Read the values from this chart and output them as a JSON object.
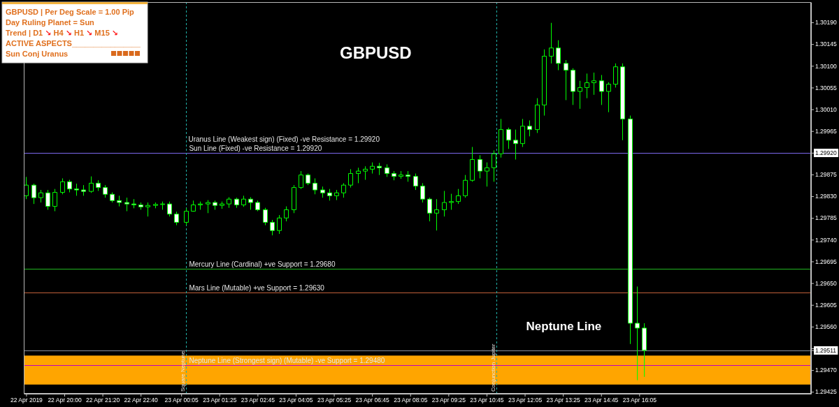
{
  "chart_data": {
    "type": "candlestick",
    "title": "GBPUSD",
    "color": "#00ff00",
    "x": [
      "2019-04-22T18:40",
      "2019-04-22T18:55",
      "2019-04-22T19:10",
      "2019-04-22T19:25",
      "2019-04-22T19:40",
      "2019-04-22T19:55",
      "2019-04-22T20:10",
      "2019-04-22T20:25",
      "2019-04-22T20:40",
      "2019-04-22T20:55",
      "2019-04-22T21:10",
      "2019-04-22T21:25",
      "2019-04-22T21:40",
      "2019-04-22T21:55",
      "2019-04-22T22:10",
      "2019-04-22T22:25",
      "2019-04-22T22:40",
      "2019-04-22T22:55",
      "2019-04-22T23:10",
      "2019-04-22T23:25",
      "2019-04-22T23:40",
      "2019-04-22T23:55",
      "2019-04-23T00:15",
      "2019-04-23T00:30",
      "2019-04-23T00:45",
      "2019-04-23T01:00",
      "2019-04-23T01:15",
      "2019-04-23T01:30",
      "2019-04-23T01:45",
      "2019-04-23T02:00",
      "2019-04-23T02:15",
      "2019-04-23T02:30",
      "2019-04-23T02:45",
      "2019-04-23T03:00",
      "2019-04-23T03:15",
      "2019-04-23T03:30",
      "2019-04-23T03:45",
      "2019-04-23T04:00",
      "2019-04-23T04:15",
      "2019-04-23T04:30",
      "2019-04-23T04:45",
      "2019-04-23T05:00",
      "2019-04-23T05:15",
      "2019-04-23T05:30",
      "2019-04-23T05:45",
      "2019-04-23T06:00",
      "2019-04-23T06:15",
      "2019-04-23T06:30",
      "2019-04-23T06:45",
      "2019-04-23T07:00",
      "2019-04-23T07:15",
      "2019-04-23T07:30",
      "2019-04-23T07:45",
      "2019-04-23T08:00",
      "2019-04-23T08:15",
      "2019-04-23T08:30",
      "2019-04-23T08:45",
      "2019-04-23T09:00",
      "2019-04-23T09:15",
      "2019-04-23T09:30",
      "2019-04-23T09:45",
      "2019-04-23T10:00",
      "2019-04-23T10:15",
      "2019-04-23T10:30",
      "2019-04-23T10:45",
      "2019-04-23T11:00",
      "2019-04-23T11:15",
      "2019-04-23T11:30",
      "2019-04-23T11:45",
      "2019-04-23T12:00",
      "2019-04-23T12:15",
      "2019-04-23T12:30",
      "2019-04-23T12:45",
      "2019-04-23T13:00",
      "2019-04-23T13:15",
      "2019-04-23T13:30",
      "2019-04-23T13:45",
      "2019-04-23T14:00",
      "2019-04-23T14:15",
      "2019-04-23T14:30",
      "2019-04-23T14:45",
      "2019-04-23T15:00",
      "2019-04-23T15:15",
      "2019-04-23T15:30",
      "2019-04-23T15:45",
      "2019-04-23T16:00",
      "2019-04-23T16:15"
    ],
    "ohlc": [
      [
        1.29831,
        1.2987,
        1.29824,
        1.29853
      ],
      [
        1.29853,
        1.29856,
        1.29814,
        1.29827
      ],
      [
        1.29827,
        1.29843,
        1.29817,
        1.29837
      ],
      [
        1.29837,
        1.29843,
        1.29802,
        1.29809
      ],
      [
        1.29809,
        1.29845,
        1.29799,
        1.29838
      ],
      [
        1.29838,
        1.29867,
        1.29834,
        1.2986
      ],
      [
        1.2986,
        1.29864,
        1.29838,
        1.29845
      ],
      [
        1.29845,
        1.29856,
        1.29831,
        1.29843
      ],
      [
        1.29843,
        1.29853,
        1.29831,
        1.2984
      ],
      [
        1.2984,
        1.29871,
        1.29837,
        1.29857
      ],
      [
        1.29857,
        1.29863,
        1.29841,
        1.29848
      ],
      [
        1.29848,
        1.29853,
        1.29827,
        1.29834
      ],
      [
        1.29834,
        1.29838,
        1.29817,
        1.29821
      ],
      [
        1.29821,
        1.29831,
        1.29809,
        1.29817
      ],
      [
        1.29817,
        1.29827,
        1.29799,
        1.29814
      ],
      [
        1.29814,
        1.29824,
        1.29805,
        1.29812
      ],
      [
        1.29812,
        1.29817,
        1.29802,
        1.29808
      ],
      [
        1.29808,
        1.29817,
        1.29788,
        1.29811
      ],
      [
        1.29811,
        1.29817,
        1.29805,
        1.29813
      ],
      [
        1.29813,
        1.29819,
        1.29802,
        1.29814
      ],
      [
        1.29814,
        1.29819,
        1.29788,
        1.29793
      ],
      [
        1.29793,
        1.29798,
        1.2977,
        1.29776
      ],
      [
        1.29776,
        1.29805,
        1.2977,
        1.29799
      ],
      [
        1.29799,
        1.29821,
        1.29798,
        1.29812
      ],
      [
        1.29812,
        1.29819,
        1.29802,
        1.29814
      ],
      [
        1.29814,
        1.29822,
        1.29795,
        1.29817
      ],
      [
        1.29817,
        1.29821,
        1.29802,
        1.29811
      ],
      [
        1.29811,
        1.29819,
        1.29804,
        1.29814
      ],
      [
        1.29814,
        1.29828,
        1.29806,
        1.29824
      ],
      [
        1.29824,
        1.29827,
        1.29806,
        1.29812
      ],
      [
        1.29812,
        1.29831,
        1.29808,
        1.29824
      ],
      [
        1.29824,
        1.29828,
        1.29802,
        1.29817
      ],
      [
        1.29817,
        1.29821,
        1.29799,
        1.29802
      ],
      [
        1.29802,
        1.29806,
        1.2977,
        1.29776
      ],
      [
        1.29776,
        1.29781,
        1.29749,
        1.29759
      ],
      [
        1.29759,
        1.29791,
        1.29752,
        1.29785
      ],
      [
        1.29785,
        1.29809,
        1.29778,
        1.29802
      ],
      [
        1.29802,
        1.29853,
        1.29795,
        1.29848
      ],
      [
        1.29848,
        1.29882,
        1.29845,
        1.29874
      ],
      [
        1.29874,
        1.29877,
        1.29853,
        1.29857
      ],
      [
        1.29857,
        1.29867,
        1.29834,
        1.29843
      ],
      [
        1.29843,
        1.2985,
        1.29827,
        1.29837
      ],
      [
        1.29837,
        1.29845,
        1.29821,
        1.29831
      ],
      [
        1.29831,
        1.29843,
        1.29822,
        1.29837
      ],
      [
        1.29837,
        1.29857,
        1.29827,
        1.29853
      ],
      [
        1.29853,
        1.29886,
        1.29848,
        1.29877
      ],
      [
        1.29877,
        1.29889,
        1.29857,
        1.29882
      ],
      [
        1.29882,
        1.29892,
        1.29864,
        1.29886
      ],
      [
        1.29886,
        1.299,
        1.29877,
        1.29892
      ],
      [
        1.29892,
        1.29899,
        1.29874,
        1.29889
      ],
      [
        1.29889,
        1.29896,
        1.2987,
        1.29877
      ],
      [
        1.29877,
        1.29882,
        1.29863,
        1.29871
      ],
      [
        1.29871,
        1.29882,
        1.29866,
        1.29874
      ],
      [
        1.29874,
        1.29882,
        1.2986,
        1.29871
      ],
      [
        1.29871,
        1.29877,
        1.29843,
        1.29851
      ],
      [
        1.29851,
        1.29857,
        1.29817,
        1.29824
      ],
      [
        1.29824,
        1.29827,
        1.29778,
        1.29795
      ],
      [
        1.29795,
        1.29824,
        1.29759,
        1.29802
      ],
      [
        1.29802,
        1.29841,
        1.29788,
        1.29817
      ],
      [
        1.29817,
        1.29835,
        1.29802,
        1.29819
      ],
      [
        1.29819,
        1.29845,
        1.29814,
        1.29831
      ],
      [
        1.29831,
        1.29874,
        1.29827,
        1.29863
      ],
      [
        1.29863,
        1.29932,
        1.2986,
        1.29906
      ],
      [
        1.29906,
        1.29915,
        1.29867,
        1.29882
      ],
      [
        1.29882,
        1.299,
        1.2985,
        1.29889
      ],
      [
        1.29889,
        1.29925,
        1.2986,
        1.29918
      ],
      [
        1.29918,
        1.2999,
        1.2991,
        1.29968
      ],
      [
        1.29968,
        1.29972,
        1.29928,
        1.29946
      ],
      [
        1.29946,
        1.29968,
        1.29906,
        1.29939
      ],
      [
        1.29939,
        1.2999,
        1.29932,
        1.29975
      ],
      [
        1.29975,
        1.29987,
        1.29954,
        1.29968
      ],
      [
        1.29968,
        1.30033,
        1.29961,
        1.30019
      ],
      [
        1.30019,
        1.30134,
        1.29997,
        1.3012
      ],
      [
        1.3012,
        1.30189,
        1.30105,
        1.30137
      ],
      [
        1.30137,
        1.30153,
        1.30091,
        1.30105
      ],
      [
        1.30105,
        1.30112,
        1.30029,
        1.30091
      ],
      [
        1.30091,
        1.30095,
        1.30019,
        1.30047
      ],
      [
        1.30047,
        1.30069,
        1.30011,
        1.30055
      ],
      [
        1.30055,
        1.30084,
        1.30033,
        1.30065
      ],
      [
        1.30065,
        1.30086,
        1.3004,
        1.30069
      ],
      [
        1.30069,
        1.30081,
        1.30019,
        1.30047
      ],
      [
        1.30047,
        1.30066,
        1.30004,
        1.30062
      ],
      [
        1.30062,
        1.30105,
        1.30055,
        1.30098
      ],
      [
        1.30098,
        1.30105,
        1.29946,
        1.2999
      ],
      [
        1.2999,
        1.29997,
        1.29524,
        1.29567
      ],
      [
        1.29567,
        1.29643,
        1.29449,
        1.29557
      ],
      [
        1.29557,
        1.29567,
        1.29456,
        1.29511
      ]
    ],
    "xlim": [
      "2019-04-22T18:35",
      "2019-04-23T22:05"
    ],
    "xticks": [
      {
        "value": "2019-04-22T18:40",
        "label": "22 Apr 2019"
      },
      {
        "value": "2019-04-22T20:00",
        "label": "22 Apr 20:00"
      },
      {
        "value": "2019-04-22T21:20",
        "label": "22 Apr 21:20"
      },
      {
        "value": "2019-04-22T22:40",
        "label": "22 Apr 22:40"
      },
      {
        "value": "2019-04-23T00:05",
        "label": "23 Apr 00:05"
      },
      {
        "value": "2019-04-23T01:25",
        "label": "23 Apr 01:25"
      },
      {
        "value": "2019-04-23T02:45",
        "label": "23 Apr 02:45"
      },
      {
        "value": "2019-04-23T04:05",
        "label": "23 Apr 04:05"
      },
      {
        "value": "2019-04-23T05:25",
        "label": "23 Apr 05:25"
      },
      {
        "value": "2019-04-23T06:45",
        "label": "23 Apr 06:45"
      },
      {
        "value": "2019-04-23T08:05",
        "label": "23 Apr 08:05"
      },
      {
        "value": "2019-04-23T09:25",
        "label": "23 Apr 09:25"
      },
      {
        "value": "2019-04-23T10:45",
        "label": "23 Apr 10:45"
      },
      {
        "value": "2019-04-23T12:05",
        "label": "23 Apr 12:05"
      },
      {
        "value": "2019-04-23T13:25",
        "label": "23 Apr 13:25"
      },
      {
        "value": "2019-04-23T14:45",
        "label": "23 Apr 14:45"
      },
      {
        "value": "2019-04-23T16:05",
        "label": "23 Apr 16:05"
      }
    ],
    "ylim": [
      1.29421,
      1.30232
    ],
    "yticks": [
      1.29425,
      {
        "value": 1.2947,
        "label": "1.29470"
      },
      {
        "value": 1.29511,
        "label": "1.29511"
      },
      {
        "value": 1.29515,
        "label": null
      },
      {
        "value": 1.2956,
        "label": "1.29560"
      },
      1.29605,
      {
        "value": 1.2965,
        "label": "1.29650"
      },
      1.29695,
      {
        "value": 1.2974,
        "label": "1.29740"
      },
      1.29785,
      {
        "value": 1.2983,
        "label": "1.29830"
      },
      1.29875,
      {
        "value": 1.2992,
        "label": "1.29920"
      },
      1.29965,
      {
        "value": 1.3001,
        "label": "1.30010"
      },
      1.30055,
      {
        "value": 1.301,
        "label": "1.30100"
      },
      1.30145,
      {
        "value": 1.3019,
        "label": "1.30190"
      }
    ],
    "ref_lines": [
      {
        "axis": "y",
        "value": 1.2992,
        "label": "Sun Line (Fixed) -ve Resistance = 1.29920",
        "color": "#7b68ee"
      },
      {
        "axis": "y",
        "value": 1.2968,
        "label": "Mercury Line (Cardinal) +ve Support = 1.29680",
        "color": "#22b822"
      },
      {
        "axis": "y",
        "value": 1.2963,
        "label": "Mars Line (Mutable) +ve Support = 1.29630",
        "color": "#c0603a"
      },
      {
        "axis": "y",
        "value": 1.2948,
        "label": "Neptune Line (Strongest sign) (Mutable) -ve Support = 1.29480",
        "color": "#c000c0"
      },
      {
        "axis": "y",
        "value": 1.29511,
        "color": "#8a9098"
      },
      {
        "axis": "x",
        "value": "2019-04-23T00:15",
        "label": "Square Neptune",
        "color": "#20b2aa",
        "line_style": "dashed"
      },
      {
        "axis": "x",
        "value": "2019-04-23T11:05",
        "label": "Conjunction Jupiter",
        "color": "#20b2aa",
        "line_style": "dashed"
      }
    ],
    "bands": [
      {
        "axis": "y",
        "from": 1.2944,
        "to": 1.295,
        "label": "Neptune Line",
        "color": "#ffa500"
      }
    ],
    "annotations": [
      "GBPUSD | Per Deg Scale = 1.00 Pip",
      "Day Ruling Planet = Sun",
      "Trend | D1 ↘ H4 ↘ H1 ↘ M15 ↘",
      "ACTIVE ASPECTS________________",
      "Sun Conj Uranus",
      {
        "text": "Uranus Line (Weakest sign) (Fixed) -ve Resistance = 1.29920",
        "x": "2019-04-23T00:20",
        "y": 1.2992
      }
    ]
  }
}
